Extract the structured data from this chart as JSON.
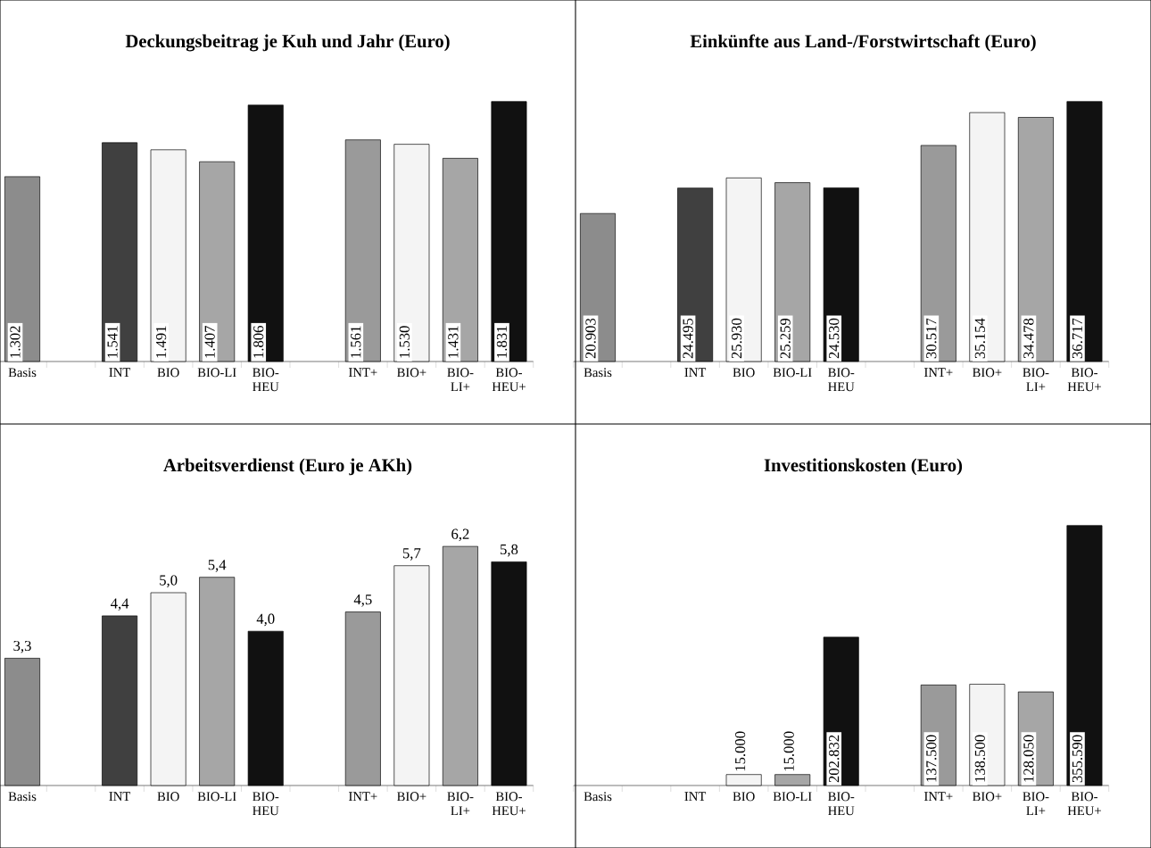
{
  "chart_data": [
    {
      "type": "bar",
      "title": "Deckungsbeitrag je Kuh und Jahr (Euro)",
      "categories": [
        "Basis",
        null,
        "INT",
        "BIO",
        "BIO-LI",
        "BIO-HEU",
        null,
        "INT+",
        "BIO+",
        "BIO-LI+",
        "BIO-HEU+"
      ],
      "values": [
        1302,
        null,
        1541,
        1491,
        1407,
        1806,
        null,
        1561,
        1530,
        1431,
        1831
      ],
      "value_labels": [
        "1.302",
        null,
        "1.541",
        "1.491",
        "1.407",
        "1.806",
        null,
        "1.561",
        "1.530",
        "1.431",
        "1.831"
      ],
      "colors": [
        "#8c8c8c",
        null,
        "#404040",
        "#f4f4f4",
        "#a6a6a6",
        "#111111",
        null,
        "#9a9a9a",
        "#f4f4f4",
        "#a6a6a6",
        "#111111"
      ]
    },
    {
      "type": "bar",
      "title": "Einkünfte aus Land-/Forstwirtschaft (Euro)",
      "categories": [
        "Basis",
        null,
        "INT",
        "BIO",
        "BIO-LI",
        "BIO-HEU",
        null,
        "INT+",
        "BIO+",
        "BIO-LI+",
        "BIO-HEU+"
      ],
      "values": [
        20903,
        null,
        24495,
        25930,
        25259,
        24530,
        null,
        30517,
        35154,
        34478,
        36717
      ],
      "value_labels": [
        "20.903",
        null,
        "24.495",
        "25.930",
        "25.259",
        "24.530",
        null,
        "30.517",
        "35.154",
        "34.478",
        "36.717"
      ],
      "colors": [
        "#8c8c8c",
        null,
        "#404040",
        "#f4f4f4",
        "#a6a6a6",
        "#111111",
        null,
        "#9a9a9a",
        "#f4f4f4",
        "#a6a6a6",
        "#111111"
      ]
    },
    {
      "type": "bar",
      "title": "Arbeitsverdienst (Euro je AKh)",
      "categories": [
        "Basis",
        null,
        "INT",
        "BIO",
        "BIO-LI",
        "BIO-HEU",
        null,
        "INT+",
        "BIO+",
        "BIO-LI+",
        "BIO-HEU+"
      ],
      "values": [
        3.3,
        null,
        4.4,
        5.0,
        5.4,
        4.0,
        null,
        4.5,
        5.7,
        6.2,
        5.8
      ],
      "value_labels": [
        "3,3",
        null,
        "4,4",
        "5,0",
        "5,4",
        "4,0",
        null,
        "4,5",
        "5,7",
        "6,2",
        "5,8"
      ],
      "colors": [
        "#8c8c8c",
        null,
        "#404040",
        "#f4f4f4",
        "#a6a6a6",
        "#111111",
        null,
        "#9a9a9a",
        "#f4f4f4",
        "#a6a6a6",
        "#111111"
      ]
    },
    {
      "type": "bar",
      "title": "Investitionskosten (Euro)",
      "categories": [
        "Basis",
        null,
        "INT",
        "BIO",
        "BIO-LI",
        "BIO-HEU",
        null,
        "INT+",
        "BIO+",
        "BIO-LI+",
        "BIO-HEU+"
      ],
      "values": [
        null,
        null,
        null,
        15000,
        15000,
        202832,
        null,
        137500,
        138500,
        128050,
        355590
      ],
      "value_labels": [
        null,
        null,
        null,
        "15.000",
        "15.000",
        "202.832",
        null,
        "137.500",
        "138.500",
        "128.050",
        "355.590"
      ],
      "colors": [
        null,
        null,
        null,
        "#f4f4f4",
        "#a6a6a6",
        "#111111",
        null,
        "#9a9a9a",
        "#f4f4f4",
        "#a6a6a6",
        "#111111"
      ]
    }
  ]
}
